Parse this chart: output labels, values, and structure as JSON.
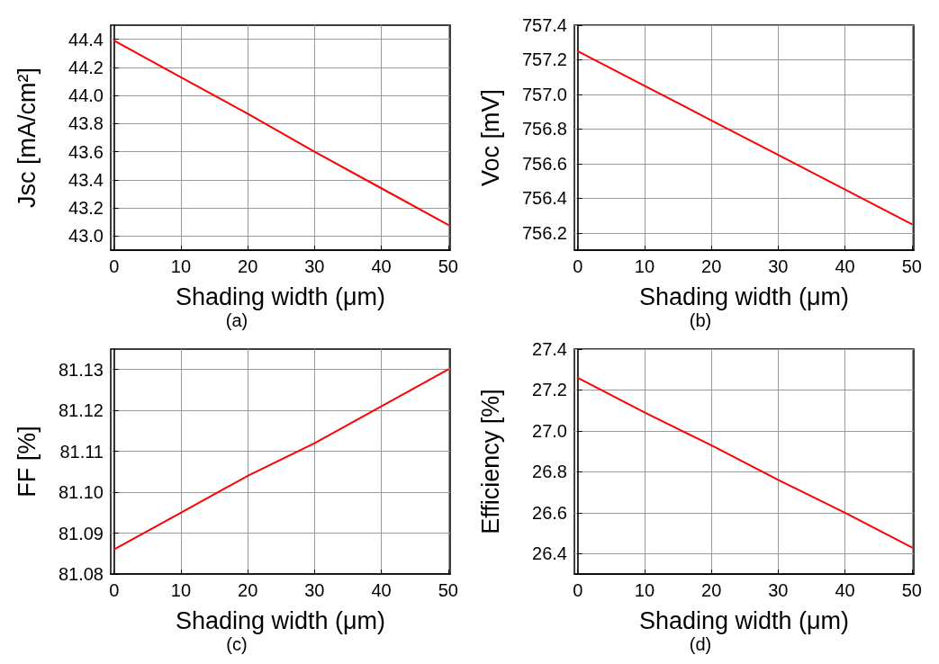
{
  "chart_data": [
    {
      "type": "line",
      "xlabel": "Shading width (μm)",
      "ylabel": "Jsc [mA/cm²]",
      "annotations": [
        "(a)"
      ],
      "x": [
        0,
        10,
        20,
        30,
        40,
        50
      ],
      "series": [
        {
          "color": "#ff0000",
          "values": [
            44.39,
            44.13,
            43.87,
            43.6,
            43.34,
            43.08
          ]
        }
      ],
      "xlim": [
        -0.5,
        50.3
      ],
      "xticks": [
        0,
        10,
        20,
        30,
        40,
        50
      ],
      "ylim": [
        42.9,
        44.5
      ],
      "yticks": [
        {
          "value": 43,
          "label": "43.0"
        },
        43.2,
        43.4,
        43.6,
        43.8,
        {
          "value": 44,
          "label": "44.0"
        },
        44.2,
        44.4
      ],
      "grid": true,
      "marker": "none",
      "line_style": "solid"
    },
    {
      "type": "line",
      "xlabel": "Shading width (μm)",
      "ylabel": "Voc [mV]",
      "annotations": [
        "(b)"
      ],
      "x": [
        0,
        10,
        20,
        30,
        40,
        50
      ],
      "series": [
        {
          "color": "#ff0000",
          "values": [
            757.25,
            757.05,
            756.85,
            756.65,
            756.45,
            756.25
          ]
        }
      ],
      "xlim": [
        -0.5,
        50.3
      ],
      "xticks": [
        0,
        10,
        20,
        30,
        40,
        50
      ],
      "ylim": [
        756.1,
        757.4
      ],
      "yticks": [
        756.2,
        756.4,
        756.6,
        756.8,
        {
          "value": 757,
          "label": "757.0"
        },
        757.2,
        757.4
      ],
      "grid": true,
      "marker": "none",
      "line_style": "solid"
    },
    {
      "type": "line",
      "xlabel": "Shading width (μm)",
      "ylabel": "FF [%]",
      "annotations": [
        "(c)"
      ],
      "x": [
        0,
        10,
        20,
        30,
        40,
        50
      ],
      "series": [
        {
          "color": "#ff0000",
          "values": [
            81.086,
            81.095,
            81.104,
            81.112,
            81.121,
            81.13
          ]
        }
      ],
      "xlim": [
        -0.5,
        50.3
      ],
      "xticks": [
        0,
        10,
        20,
        30,
        40,
        50
      ],
      "ylim": [
        81.08,
        81.135
      ],
      "yticks": [
        {
          "value": 81.08,
          "label": "81.08"
        },
        {
          "value": 81.09,
          "label": "81.09"
        },
        {
          "value": 81.1,
          "label": "81.10"
        },
        {
          "value": 81.11,
          "label": "81.11"
        },
        {
          "value": 81.12,
          "label": "81.12"
        },
        {
          "value": 81.13,
          "label": "81.13"
        }
      ],
      "grid": true,
      "marker": "none",
      "line_style": "solid"
    },
    {
      "type": "line",
      "xlabel": "Shading width (μm)",
      "ylabel": "Efficiency [%]",
      "annotations": [
        "(d)"
      ],
      "x": [
        0,
        10,
        20,
        30,
        40,
        50
      ],
      "series": [
        {
          "color": "#ff0000",
          "values": [
            27.26,
            27.09,
            26.93,
            26.76,
            26.6,
            26.43
          ]
        }
      ],
      "xlim": [
        -0.5,
        50.3
      ],
      "xticks": [
        0,
        10,
        20,
        30,
        40,
        50
      ],
      "ylim": [
        26.3,
        27.4
      ],
      "yticks": [
        26.4,
        26.6,
        26.8,
        {
          "value": 27,
          "label": "27.0"
        },
        27.2,
        27.4
      ],
      "grid": true,
      "marker": "none",
      "line_style": "solid"
    }
  ]
}
